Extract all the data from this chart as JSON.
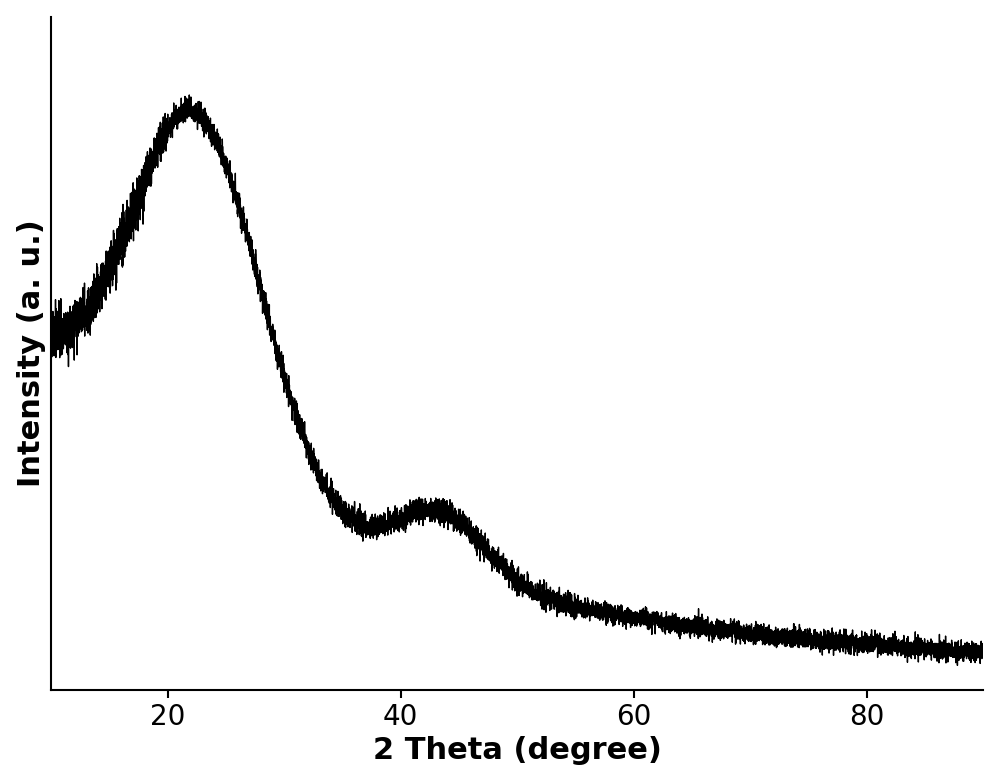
{
  "xlabel": "2 Theta (degree)",
  "ylabel": "Intensity (a. u.)",
  "xlim": [
    10,
    90
  ],
  "ylim": [
    0.0,
    1.35
  ],
  "x_ticks": [
    20,
    40,
    60,
    80
  ],
  "background_color": "#ffffff",
  "line_color": "#000000",
  "line_width": 1.0,
  "xlabel_fontsize": 22,
  "ylabel_fontsize": 22,
  "tick_fontsize": 20,
  "fig_width": 10.0,
  "fig_height": 7.82
}
